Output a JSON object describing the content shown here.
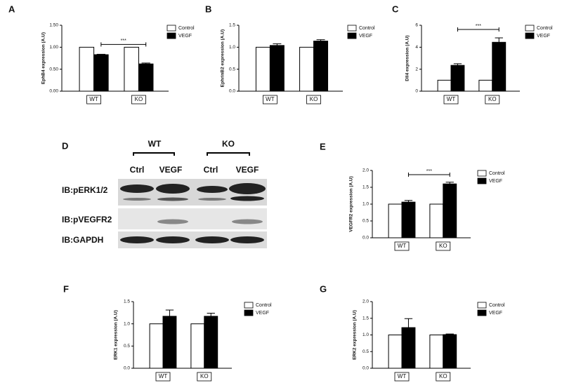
{
  "chart_data": [
    {
      "type": "bar",
      "panel": "A",
      "ylabel": "EphB4 expression (A.U)",
      "categories": [
        "WT",
        "KO"
      ],
      "series": [
        {
          "name": "Control",
          "color": "#ffffff",
          "values": [
            1,
            1
          ],
          "errors": [
            0,
            0
          ]
        },
        {
          "name": "VEGF",
          "color": "#000000",
          "values": [
            0.83,
            0.62
          ],
          "errors": [
            0.01,
            0.02
          ]
        }
      ],
      "ylim": [
        0,
        1.5
      ],
      "yticks": [
        {
          "value": 0,
          "label": "0.00"
        },
        {
          "value": 0.5,
          "label": "0.50"
        },
        {
          "value": 1,
          "label": "1.00"
        },
        {
          "value": 1.5,
          "label": "1.50"
        }
      ],
      "annotation": "***"
    },
    {
      "type": "bar",
      "panel": "B",
      "ylabel": "EphrinB2 expression (A.U)",
      "categories": [
        "WT",
        "KO"
      ],
      "series": [
        {
          "name": "Control",
          "color": "#ffffff",
          "values": [
            1,
            1
          ],
          "errors": [
            0,
            0
          ]
        },
        {
          "name": "VEGF",
          "color": "#000000",
          "values": [
            1.04,
            1.14
          ],
          "errors": [
            0.04,
            0.03
          ]
        }
      ],
      "ylim": [
        0,
        1.5
      ],
      "yticks": [
        {
          "value": 0,
          "label": "0.0"
        },
        {
          "value": 0.5,
          "label": "0.5"
        },
        {
          "value": 1,
          "label": "1.0"
        },
        {
          "value": 1.5,
          "label": "1.5"
        }
      ]
    },
    {
      "type": "bar",
      "panel": "C",
      "ylabel": "Dll4 expression (A.U)",
      "categories": [
        "WT",
        "KO"
      ],
      "series": [
        {
          "name": "Control",
          "color": "#ffffff",
          "values": [
            1,
            1
          ],
          "errors": [
            0,
            0
          ]
        },
        {
          "name": "VEGF",
          "color": "#000000",
          "values": [
            2.35,
            4.45
          ],
          "errors": [
            0.15,
            0.4
          ]
        }
      ],
      "ylim": [
        0,
        6
      ],
      "yticks": [
        0,
        2,
        4,
        6
      ],
      "annotation": "***"
    },
    {
      "type": "bar",
      "panel": "E",
      "ylabel": "VEGFR2 expression (A.U)",
      "categories": [
        "WT",
        "KO"
      ],
      "series": [
        {
          "name": "Control",
          "color": "#ffffff",
          "values": [
            1,
            1
          ],
          "errors": [
            0,
            0
          ]
        },
        {
          "name": "VEGF",
          "color": "#000000",
          "values": [
            1.06,
            1.6
          ],
          "errors": [
            0.05,
            0.05
          ]
        }
      ],
      "ylim": [
        0,
        2
      ],
      "yticks": [
        {
          "value": 0,
          "label": "0.0"
        },
        {
          "value": 0.5,
          "label": "0.5"
        },
        {
          "value": 1,
          "label": "1.0"
        },
        {
          "value": 1.5,
          "label": "1.5"
        },
        {
          "value": 2,
          "label": "2.0"
        }
      ],
      "annotation": "***"
    },
    {
      "type": "bar",
      "panel": "F",
      "ylabel": "ERK1 expression (A.U)",
      "categories": [
        "WT",
        "KO"
      ],
      "series": [
        {
          "name": "Control",
          "color": "#ffffff",
          "values": [
            1,
            1
          ],
          "errors": [
            0,
            0
          ]
        },
        {
          "name": "VEGF",
          "color": "#000000",
          "values": [
            1.17,
            1.17
          ],
          "errors": [
            0.14,
            0.07
          ]
        }
      ],
      "ylim": [
        0,
        1.5
      ],
      "yticks": [
        {
          "value": 0,
          "label": "0.0"
        },
        {
          "value": 0.5,
          "label": "0.5"
        },
        {
          "value": 1,
          "label": "1.0"
        },
        {
          "value": 1.5,
          "label": "1.5"
        }
      ]
    },
    {
      "type": "bar",
      "panel": "G",
      "ylabel": "ERK2 expression (A.U)",
      "categories": [
        "WT",
        "KO"
      ],
      "series": [
        {
          "name": "Control",
          "color": "#ffffff",
          "values": [
            1,
            1
          ],
          "errors": [
            0,
            0
          ]
        },
        {
          "name": "VEGF",
          "color": "#000000",
          "values": [
            1.22,
            1.01
          ],
          "errors": [
            0.27,
            0.02
          ]
        }
      ],
      "ylim": [
        0,
        2
      ],
      "yticks": [
        {
          "value": 0,
          "label": "0.0"
        },
        {
          "value": 0.5,
          "label": "0.5"
        },
        {
          "value": 1,
          "label": "1.0"
        },
        {
          "value": 1.5,
          "label": "1.5"
        },
        {
          "value": 2,
          "label": "2.0"
        }
      ]
    }
  ],
  "blot": {
    "panel": "D",
    "groups": [
      "WT",
      "KO"
    ],
    "lanes": [
      "Ctrl",
      "VEGF",
      "Ctrl",
      "VEGF"
    ],
    "rows": [
      "IB:pERK1/2",
      "IB:pVEGFR2",
      "IB:GAPDH"
    ]
  }
}
